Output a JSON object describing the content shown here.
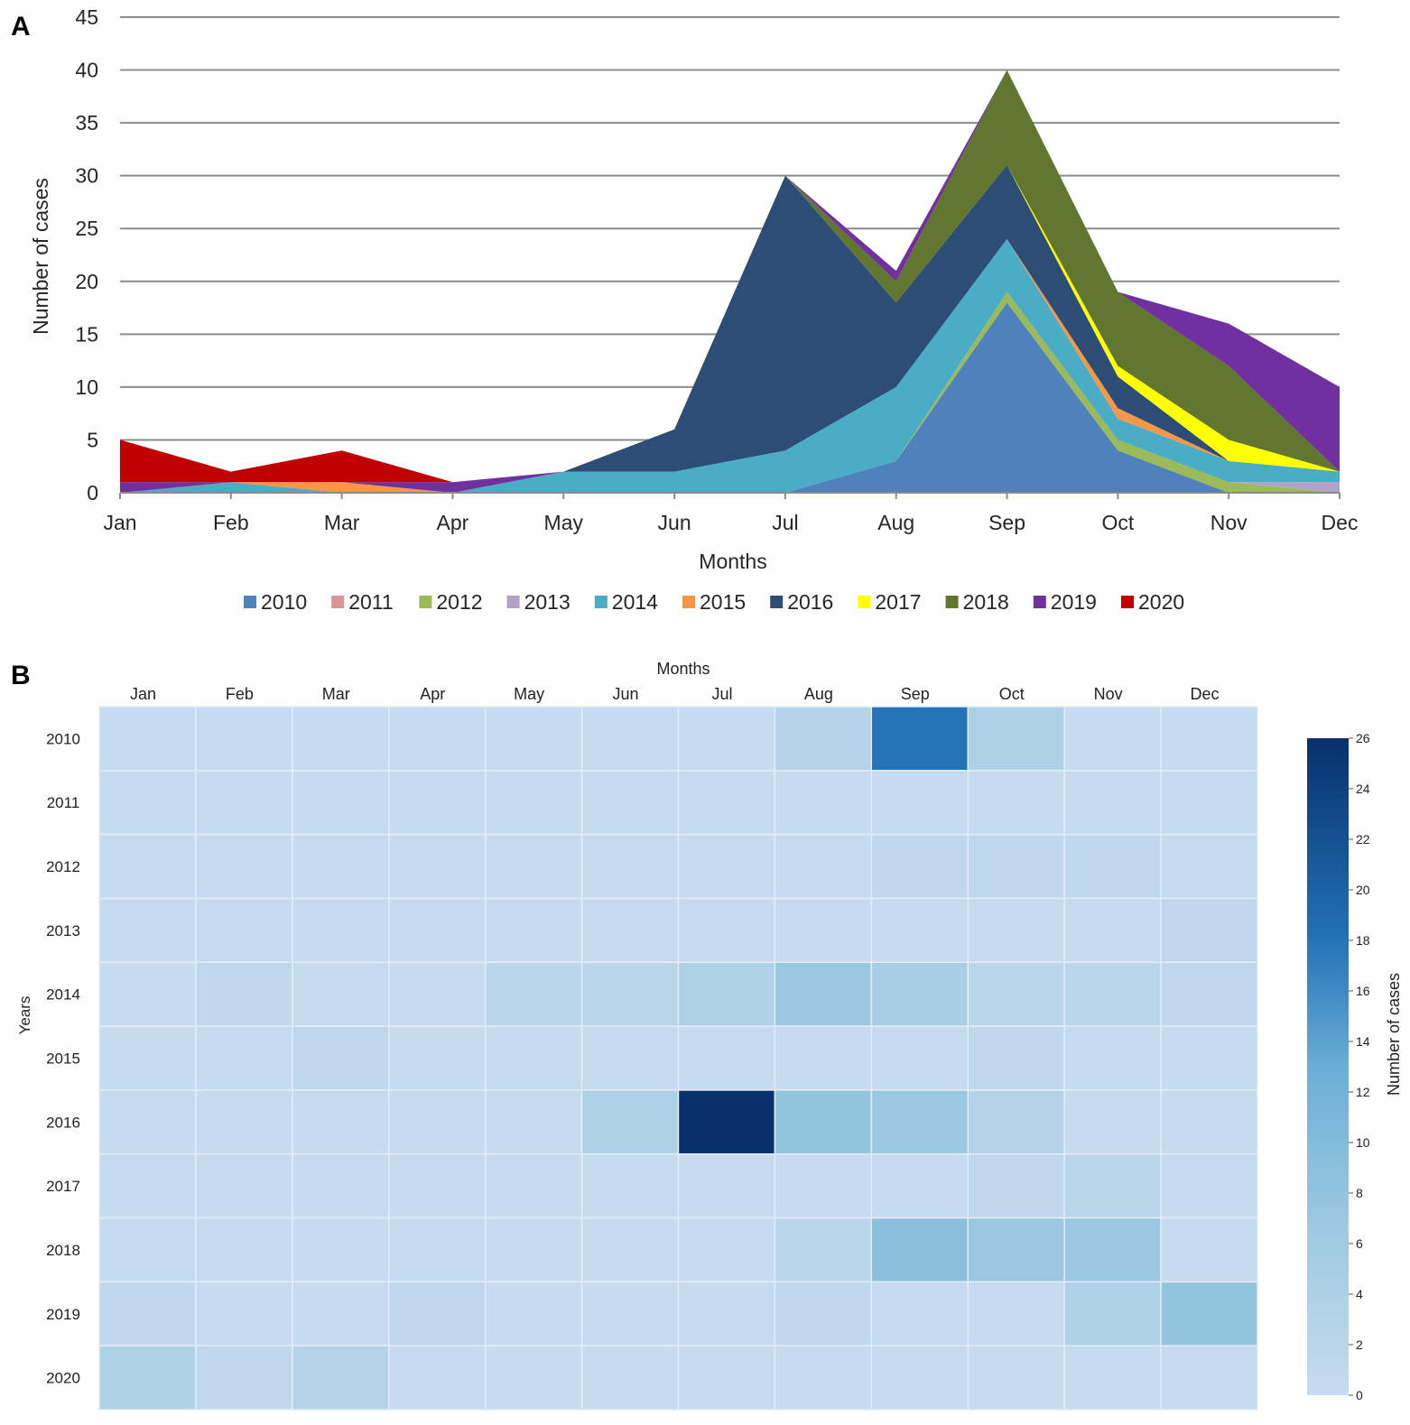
{
  "chart_data": [
    {
      "type": "area",
      "panel": "A",
      "title": "",
      "xlabel": "Months",
      "ylabel": "Number of cases",
      "ylim": [
        0,
        45
      ],
      "yticks": [
        0,
        5,
        10,
        15,
        20,
        25,
        30,
        35,
        40,
        45
      ],
      "grid": true,
      "legend_position": "bottom",
      "stacked": true,
      "categories": [
        "Jan",
        "Feb",
        "Mar",
        "Apr",
        "May",
        "Jun",
        "Jul",
        "Aug",
        "Sep",
        "Oct",
        "Nov",
        "Dec"
      ],
      "series": [
        {
          "name": "2010",
          "color": "#4f81bd",
          "values": [
            0,
            0,
            0,
            0,
            0,
            0,
            0,
            3,
            18,
            4,
            0,
            0
          ]
        },
        {
          "name": "2011",
          "color": "#d99694",
          "values": [
            0,
            0,
            0,
            0,
            0,
            0,
            0,
            0,
            0,
            0,
            0,
            0
          ]
        },
        {
          "name": "2012",
          "color": "#9bbb59",
          "values": [
            0,
            0,
            0,
            0,
            0,
            0,
            0,
            0,
            1,
            1,
            1,
            0
          ]
        },
        {
          "name": "2013",
          "color": "#b3a2c7",
          "values": [
            0,
            0,
            0,
            0,
            0,
            0,
            0,
            0,
            0,
            0,
            0,
            1
          ]
        },
        {
          "name": "2014",
          "color": "#4bacc6",
          "values": [
            0,
            1,
            0,
            0,
            2,
            2,
            4,
            7,
            5,
            2,
            2,
            1
          ]
        },
        {
          "name": "2015",
          "color": "#f79646",
          "values": [
            0,
            0,
            1,
            0,
            0,
            0,
            0,
            0,
            0,
            1,
            0,
            0
          ]
        },
        {
          "name": "2016",
          "color": "#2c4d75",
          "values": [
            0,
            0,
            0,
            0,
            0,
            4,
            26,
            8,
            7,
            3,
            0,
            0
          ]
        },
        {
          "name": "2017",
          "color": "#ffff00",
          "values": [
            0,
            0,
            0,
            0,
            0,
            0,
            0,
            0,
            0,
            1,
            2,
            0
          ]
        },
        {
          "name": "2018",
          "color": "#617730",
          "values": [
            0,
            0,
            0,
            0,
            0,
            0,
            0,
            2,
            9,
            7,
            7,
            0
          ]
        },
        {
          "name": "2019",
          "color": "#7030a0",
          "values": [
            1,
            0,
            0,
            1,
            0,
            0,
            0,
            1,
            0,
            0,
            4,
            8
          ]
        },
        {
          "name": "2020",
          "color": "#c00000",
          "values": [
            4,
            1,
            3,
            0,
            0,
            0,
            0,
            0,
            0,
            0,
            0,
            0
          ]
        }
      ]
    },
    {
      "type": "heatmap",
      "panel": "B",
      "title": "",
      "xlabel": "Months",
      "ylabel": "Years",
      "colorbar_label": "Number of cases",
      "colorbar_range": [
        0,
        26
      ],
      "colorbar_ticks": [
        0,
        2,
        4,
        6,
        8,
        10,
        12,
        14,
        16,
        18,
        20,
        22,
        24,
        26
      ],
      "x": [
        "Jan",
        "Feb",
        "Mar",
        "Apr",
        "May",
        "Jun",
        "Jul",
        "Aug",
        "Sep",
        "Oct",
        "Nov",
        "Dec"
      ],
      "y": [
        "2010",
        "2011",
        "2012",
        "2013",
        "2014",
        "2015",
        "2016",
        "2017",
        "2018",
        "2019",
        "2020"
      ],
      "values": [
        [
          0,
          0,
          0,
          0,
          0,
          0,
          0,
          3,
          18,
          4,
          0,
          0
        ],
        [
          0,
          0,
          0,
          0,
          0,
          0,
          0,
          0,
          0,
          0,
          0,
          0
        ],
        [
          0,
          0,
          0,
          0,
          0,
          0,
          0,
          0,
          1,
          1,
          1,
          0
        ],
        [
          0,
          0,
          0,
          0,
          0,
          0,
          0,
          0,
          0,
          0,
          0,
          1
        ],
        [
          0,
          1,
          0,
          0,
          2,
          2,
          4,
          7,
          5,
          2,
          2,
          1
        ],
        [
          0,
          0,
          1,
          0,
          0,
          0,
          0,
          0,
          0,
          1,
          0,
          0
        ],
        [
          0,
          0,
          0,
          0,
          0,
          4,
          26,
          8,
          7,
          3,
          0,
          0
        ],
        [
          0,
          0,
          0,
          0,
          0,
          0,
          0,
          0,
          0,
          1,
          2,
          0
        ],
        [
          0,
          0,
          0,
          0,
          0,
          0,
          0,
          2,
          9,
          7,
          7,
          0
        ],
        [
          1,
          0,
          0,
          1,
          0,
          0,
          0,
          1,
          0,
          0,
          4,
          8
        ],
        [
          4,
          1,
          3,
          0,
          0,
          0,
          0,
          0,
          0,
          0,
          0,
          0
        ]
      ]
    }
  ],
  "panels": {
    "a_label": "A",
    "b_label": "B"
  },
  "colors": {
    "grid": "#8c8c8c",
    "axis_text": "#262626",
    "heat_low": "#c6dbef",
    "heat_high": "#08306b"
  }
}
